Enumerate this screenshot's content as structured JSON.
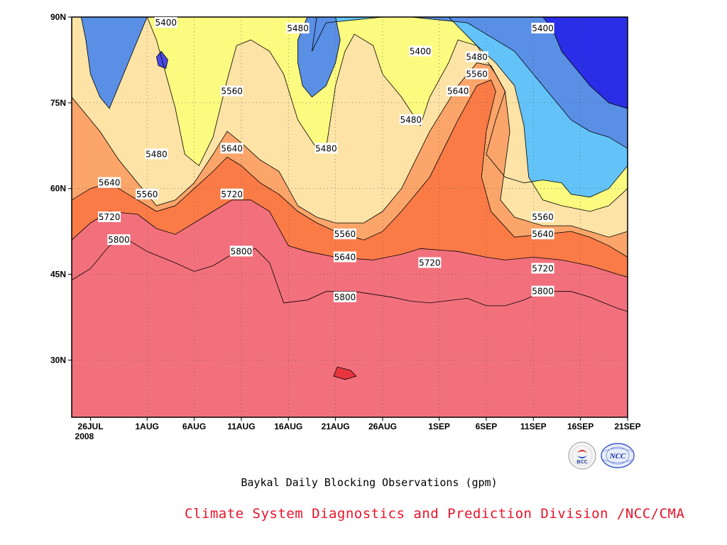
{
  "chart_data": {
    "type": "heatmap",
    "subtype": "filled-contour",
    "title": "Baykal Daily Blocking Observations (gpm)",
    "xaxis": {
      "ticks": [
        "26JUL",
        "1AUG",
        "6AUG",
        "11AUG",
        "16AUG",
        "21AUG",
        "26AUG",
        "1SEP",
        "6SEP",
        "11SEP",
        "16SEP",
        "21SEP"
      ],
      "year_label": "2008",
      "range": [
        "2008-07-24",
        "2008-09-21"
      ]
    },
    "yaxis": {
      "ticks": [
        "30N",
        "45N",
        "60N",
        "75N",
        "90N"
      ],
      "range": [
        20,
        90
      ],
      "unit": "latitude (deg N)"
    },
    "grid": "dotted",
    "contour_levels_gpm": [
      5400,
      5480,
      5560,
      5640,
      5720,
      5800
    ],
    "contour_labels": [
      {
        "text": "5400",
        "date": "2008-08-03",
        "lat": 89
      },
      {
        "text": "5480",
        "date": "2008-08-17",
        "lat": 88
      },
      {
        "text": "5400",
        "date": "2008-08-30",
        "lat": 84
      },
      {
        "text": "5400",
        "date": "2008-09-12",
        "lat": 88
      },
      {
        "text": "5480",
        "date": "2008-09-05",
        "lat": 83
      },
      {
        "text": "5560",
        "date": "2008-09-05",
        "lat": 80
      },
      {
        "text": "5640",
        "date": "2008-09-03",
        "lat": 77
      },
      {
        "text": "5560",
        "date": "2008-08-10",
        "lat": 77
      },
      {
        "text": "5480",
        "date": "2008-08-29",
        "lat": 72
      },
      {
        "text": "5480",
        "date": "2008-08-02",
        "lat": 66
      },
      {
        "text": "5480",
        "date": "2008-08-20",
        "lat": 67
      },
      {
        "text": "5640",
        "date": "2008-08-10",
        "lat": 67
      },
      {
        "text": "5640",
        "date": "2008-07-28",
        "lat": 61
      },
      {
        "text": "5560",
        "date": "2008-08-01",
        "lat": 59
      },
      {
        "text": "5720",
        "date": "2008-08-10",
        "lat": 59
      },
      {
        "text": "5720",
        "date": "2008-07-28",
        "lat": 55
      },
      {
        "text": "5560",
        "date": "2008-08-22",
        "lat": 52
      },
      {
        "text": "5560",
        "date": "2008-09-12",
        "lat": 55
      },
      {
        "text": "5640",
        "date": "2008-09-12",
        "lat": 52
      },
      {
        "text": "5800",
        "date": "2008-07-29",
        "lat": 51
      },
      {
        "text": "5800",
        "date": "2008-08-11",
        "lat": 49
      },
      {
        "text": "5640",
        "date": "2008-08-22",
        "lat": 48
      },
      {
        "text": "5720",
        "date": "2008-08-31",
        "lat": 47
      },
      {
        "text": "5720",
        "date": "2008-09-12",
        "lat": 46
      },
      {
        "text": "5800",
        "date": "2008-08-22",
        "lat": 41
      },
      {
        "text": "5800",
        "date": "2008-09-12",
        "lat": 42
      }
    ],
    "colors": {
      "below_5400": "#2a2ee6",
      "5400": "#5a8fe6",
      "5480": "#63c3f8",
      "5560": "#fbfb80",
      "5640": "#fde3a5",
      "5720": "#fba56a",
      "5800": "#fb7b47",
      "above_5800": "#f2707c",
      "embedded_high": "#e8343e",
      "embedded_low_inner": "#4a4ae6"
    }
  },
  "caption": "Baykal Daily Blocking Observations (gpm)",
  "footer": "Climate System Diagnostics and Prediction Division /NCC/CMA",
  "logos": [
    {
      "name": "bcc-logo",
      "text": "BCC"
    },
    {
      "name": "ncc-logo",
      "text": "NCC"
    }
  ]
}
